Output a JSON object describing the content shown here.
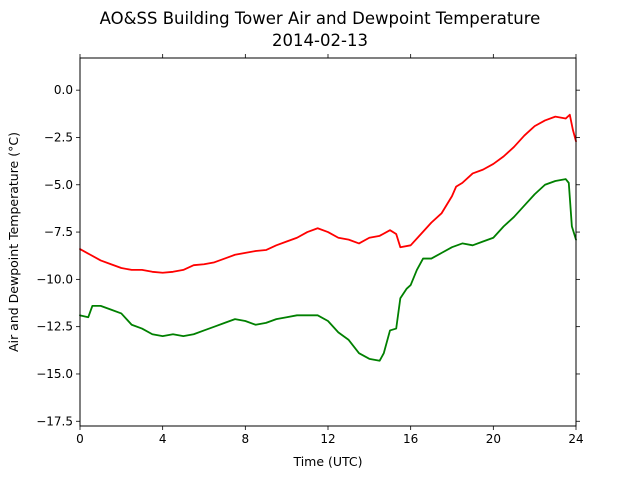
{
  "chart_data": {
    "type": "line",
    "title": "AO&SS Building Tower Air and Dewpoint Temperature",
    "subtitle": "2014-02-13",
    "xlabel": "Time (UTC)",
    "ylabel": "Air and Dewpoint Temperature (°C)",
    "xlim": [
      0,
      24
    ],
    "ylim": [
      -17.75,
      1.7
    ],
    "xticks": [
      0,
      4,
      8,
      12,
      16,
      20,
      24
    ],
    "yticks": [
      0.0,
      -2.5,
      -5.0,
      -7.5,
      -10.0,
      -12.5,
      -15.0,
      -17.5
    ],
    "xtick_labels": [
      "0",
      "4",
      "8",
      "12",
      "16",
      "20",
      "24"
    ],
    "ytick_labels": [
      "0.0",
      "−2.5",
      "−5.0",
      "−7.5",
      "−10.0",
      "−12.5",
      "−15.0",
      "−17.5"
    ],
    "grid": false,
    "series": [
      {
        "color": "#ff0000",
        "points": [
          [
            0.0,
            -8.4
          ],
          [
            0.5,
            -8.7
          ],
          [
            1.0,
            -9.0
          ],
          [
            1.5,
            -9.2
          ],
          [
            2.0,
            -9.4
          ],
          [
            2.5,
            -9.5
          ],
          [
            3.0,
            -9.5
          ],
          [
            3.5,
            -9.6
          ],
          [
            4.0,
            -9.65
          ],
          [
            4.5,
            -9.6
          ],
          [
            5.0,
            -9.5
          ],
          [
            5.5,
            -9.25
          ],
          [
            6.0,
            -9.2
          ],
          [
            6.5,
            -9.1
          ],
          [
            7.0,
            -8.9
          ],
          [
            7.5,
            -8.7
          ],
          [
            8.0,
            -8.6
          ],
          [
            8.5,
            -8.5
          ],
          [
            9.0,
            -8.45
          ],
          [
            9.5,
            -8.2
          ],
          [
            10.0,
            -8.0
          ],
          [
            10.5,
            -7.8
          ],
          [
            11.0,
            -7.5
          ],
          [
            11.5,
            -7.3
          ],
          [
            12.0,
            -7.5
          ],
          [
            12.5,
            -7.8
          ],
          [
            13.0,
            -7.9
          ],
          [
            13.5,
            -8.1
          ],
          [
            14.0,
            -7.8
          ],
          [
            14.5,
            -7.7
          ],
          [
            15.0,
            -7.4
          ],
          [
            15.3,
            -7.6
          ],
          [
            15.5,
            -8.3
          ],
          [
            16.0,
            -8.2
          ],
          [
            16.5,
            -7.6
          ],
          [
            17.0,
            -7.0
          ],
          [
            17.5,
            -6.5
          ],
          [
            18.0,
            -5.6
          ],
          [
            18.2,
            -5.1
          ],
          [
            18.5,
            -4.9
          ],
          [
            19.0,
            -4.4
          ],
          [
            19.5,
            -4.2
          ],
          [
            20.0,
            -3.9
          ],
          [
            20.5,
            -3.5
          ],
          [
            21.0,
            -3.0
          ],
          [
            21.5,
            -2.4
          ],
          [
            22.0,
            -1.9
          ],
          [
            22.5,
            -1.6
          ],
          [
            23.0,
            -1.4
          ],
          [
            23.5,
            -1.5
          ],
          [
            23.7,
            -1.3
          ],
          [
            23.85,
            -2.1
          ],
          [
            24.0,
            -2.7
          ]
        ]
      },
      {
        "color": "#008000",
        "points": [
          [
            0.0,
            -11.9
          ],
          [
            0.4,
            -12.0
          ],
          [
            0.6,
            -11.4
          ],
          [
            1.0,
            -11.4
          ],
          [
            1.5,
            -11.6
          ],
          [
            2.0,
            -11.8
          ],
          [
            2.5,
            -12.4
          ],
          [
            3.0,
            -12.6
          ],
          [
            3.5,
            -12.9
          ],
          [
            4.0,
            -13.0
          ],
          [
            4.5,
            -12.9
          ],
          [
            5.0,
            -13.0
          ],
          [
            5.5,
            -12.9
          ],
          [
            6.0,
            -12.7
          ],
          [
            6.5,
            -12.5
          ],
          [
            7.0,
            -12.3
          ],
          [
            7.5,
            -12.1
          ],
          [
            8.0,
            -12.2
          ],
          [
            8.5,
            -12.4
          ],
          [
            9.0,
            -12.3
          ],
          [
            9.5,
            -12.1
          ],
          [
            10.0,
            -12.0
          ],
          [
            10.5,
            -11.9
          ],
          [
            11.0,
            -11.9
          ],
          [
            11.5,
            -11.9
          ],
          [
            12.0,
            -12.2
          ],
          [
            12.5,
            -12.8
          ],
          [
            13.0,
            -13.2
          ],
          [
            13.5,
            -13.9
          ],
          [
            14.0,
            -14.2
          ],
          [
            14.5,
            -14.3
          ],
          [
            14.7,
            -13.9
          ],
          [
            15.0,
            -12.7
          ],
          [
            15.3,
            -12.6
          ],
          [
            15.5,
            -11.0
          ],
          [
            15.8,
            -10.5
          ],
          [
            16.0,
            -10.3
          ],
          [
            16.3,
            -9.5
          ],
          [
            16.6,
            -8.9
          ],
          [
            17.0,
            -8.9
          ],
          [
            17.5,
            -8.6
          ],
          [
            18.0,
            -8.3
          ],
          [
            18.5,
            -8.1
          ],
          [
            19.0,
            -8.2
          ],
          [
            19.5,
            -8.0
          ],
          [
            20.0,
            -7.8
          ],
          [
            20.5,
            -7.2
          ],
          [
            21.0,
            -6.7
          ],
          [
            21.5,
            -6.1
          ],
          [
            22.0,
            -5.5
          ],
          [
            22.5,
            -5.0
          ],
          [
            23.0,
            -4.8
          ],
          [
            23.5,
            -4.7
          ],
          [
            23.65,
            -4.9
          ],
          [
            23.8,
            -7.2
          ],
          [
            24.0,
            -7.9
          ]
        ]
      }
    ]
  }
}
